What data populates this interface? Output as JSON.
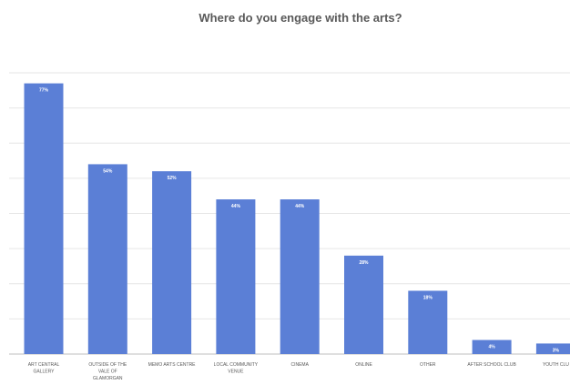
{
  "chart_data": {
    "type": "bar",
    "title": "Where do you engage with the arts?",
    "categories": [
      [
        "ART CENTRAL",
        "GALLERY"
      ],
      [
        "OUTSIDE OF THE",
        "VALE OF",
        "GLAMORGAN"
      ],
      [
        "MEMO ARTS CENTRE"
      ],
      [
        "LOCAL COMMUNITY",
        "VENUE"
      ],
      [
        "CINEMA"
      ],
      [
        "ONLINE"
      ],
      [
        "OTHER"
      ],
      [
        "AFTER SCHOOL CLUB"
      ],
      [
        "YOUTH CLU"
      ]
    ],
    "values": [
      77,
      54,
      52,
      44,
      44,
      28,
      18,
      4,
      3
    ],
    "data_labels": [
      "77%",
      "54%",
      "52%",
      "44%",
      "44%",
      "28%",
      "18%",
      "4%",
      "3%"
    ],
    "ylim": [
      0,
      80
    ],
    "y_gridlines": [
      0,
      10,
      20,
      30,
      40,
      50,
      60,
      70,
      80
    ],
    "grid": true,
    "color": "#5b7fd6"
  }
}
